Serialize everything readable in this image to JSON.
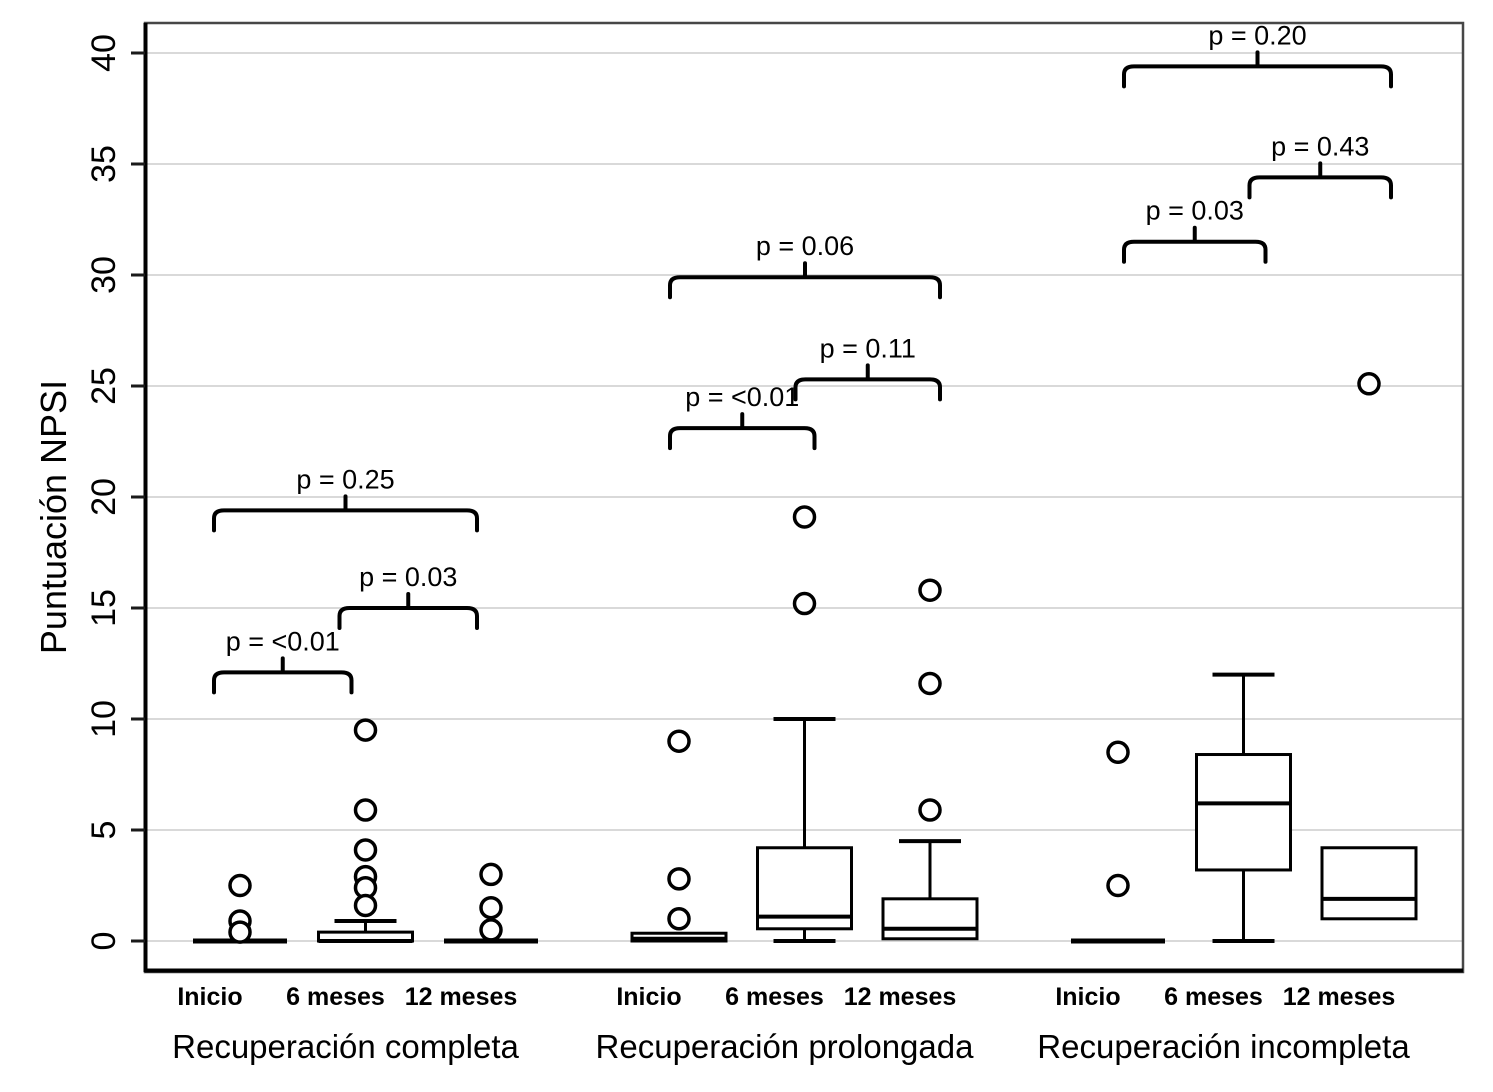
{
  "chart_data": {
    "type": "boxplot",
    "title": "",
    "ylabel": "Puntuación NPSI",
    "xlabel": "",
    "ylim": [
      -1.4,
      41.3
    ],
    "yticks": [
      0,
      5,
      10,
      15,
      20,
      25,
      30,
      35,
      40
    ],
    "grid": "horizontal",
    "legend": "none",
    "colors": {
      "box_stroke": "#000000",
      "box_fill": "#ffffff",
      "gridline": "#d9d9d9",
      "axis": "#000000",
      "border": "#474747",
      "background": "#ffffff"
    },
    "groups": [
      {
        "label": "Recuperación completa",
        "boxes": [
          {
            "time": "Inicio",
            "min": 0,
            "q1": 0,
            "median": 0,
            "q3": 0,
            "max": 0,
            "outliers": [
              2.5,
              0.9,
              0.4
            ]
          },
          {
            "time": "6 meses",
            "min": 0,
            "q1": 0,
            "median": 0,
            "q3": 0.4,
            "max": 0.9,
            "outliers": [
              9.5,
              5.9,
              4.1,
              2.9,
              2.4,
              1.6
            ]
          },
          {
            "time": "12 meses",
            "min": 0,
            "q1": 0,
            "median": 0,
            "q3": 0,
            "max": 0,
            "outliers": [
              3.0,
              1.5,
              0.5
            ]
          }
        ],
        "comparisons": [
          {
            "label": "p = <0.01",
            "from": 0,
            "to": 1,
            "y": 12.1
          },
          {
            "label": "p = 0.03",
            "from": 1,
            "to": 2,
            "y": 15.0
          },
          {
            "label": "p = 0.25",
            "from": 0,
            "to": 2,
            "y": 19.4
          }
        ]
      },
      {
        "label": "Recuperación prolongada",
        "boxes": [
          {
            "time": "Inicio",
            "min": 0,
            "q1": 0,
            "median": 0.1,
            "q3": 0.35,
            "max": 0.35,
            "outliers": [
              9.0,
              2.8,
              1.0
            ]
          },
          {
            "time": "6 meses",
            "min": 0,
            "q1": 0.55,
            "median": 1.1,
            "q3": 4.2,
            "max": 10,
            "outliers": [
              19.1,
              15.2
            ]
          },
          {
            "time": "12 meses",
            "min": 0.1,
            "q1": 0.1,
            "median": 0.55,
            "q3": 1.9,
            "max": 4.5,
            "outliers": [
              15.8,
              11.6,
              5.9
            ]
          }
        ],
        "comparisons": [
          {
            "label": "p = <0.01",
            "from": 0,
            "to": 1,
            "y": 23.1
          },
          {
            "label": "p = 0.11",
            "from": 1,
            "to": 2,
            "y": 25.3
          },
          {
            "label": "p = 0.06",
            "from": 0,
            "to": 2,
            "y": 29.9
          }
        ]
      },
      {
        "label": "Recuperación incompleta",
        "boxes": [
          {
            "time": "Inicio",
            "min": 0,
            "q1": 0,
            "median": 0,
            "q3": 0,
            "max": 0,
            "outliers": [
              8.5,
              2.5
            ]
          },
          {
            "time": "6 meses",
            "min": 0,
            "q1": 3.2,
            "median": 6.2,
            "q3": 8.4,
            "max": 12,
            "outliers": []
          },
          {
            "time": "12 meses",
            "min": 1.0,
            "q1": 1.0,
            "median": 1.9,
            "q3": 4.2,
            "max": 4.2,
            "outliers": [
              25.1
            ]
          }
        ],
        "comparisons": [
          {
            "label": "p = 0.03",
            "from": 0,
            "to": 1,
            "y": 31.5
          },
          {
            "label": "p = 0.43",
            "from": 1,
            "to": 2,
            "y": 34.4
          },
          {
            "label": "p = 0.20",
            "from": 0,
            "to": 2,
            "y": 39.4
          }
        ]
      }
    ]
  }
}
